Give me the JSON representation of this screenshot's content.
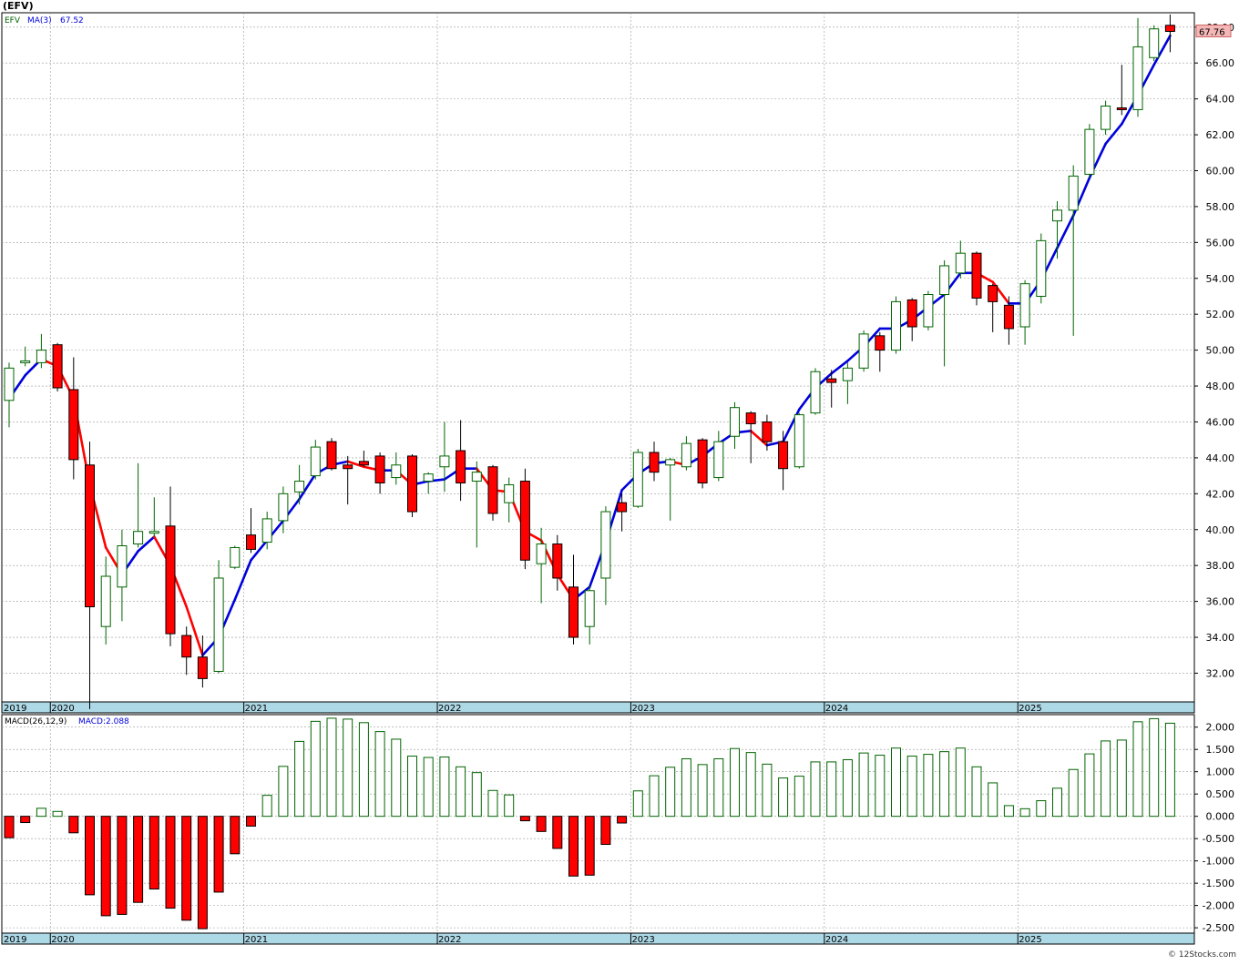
{
  "header": {
    "ticker_label": "(EFV)",
    "legend_symbol": "EFV",
    "legend_ma_label": "MA(3)",
    "legend_ma_value": "67.52",
    "last_price_tag": "67.76"
  },
  "macd_panel": {
    "label": "MACD(26,12,9)",
    "value_label": "MACD:2.088"
  },
  "footer": {
    "watermark": "© 12Stocks.com"
  },
  "colors": {
    "up_candle": "#006400",
    "down_candle": "#ff0000",
    "ma_up": "#0000dd",
    "ma_down": "#ff0000",
    "date_axis_band": "#add8e6",
    "grid": "#999999"
  },
  "chart_data": [
    {
      "type": "candlestick",
      "interval": "monthly",
      "series_name": "EFV",
      "ylim": [
        30.4,
        68.8
      ],
      "y_ticks": [
        "32.00",
        "34.00",
        "36.00",
        "38.00",
        "40.00",
        "42.00",
        "44.00",
        "46.00",
        "48.00",
        "50.00",
        "52.00",
        "54.00",
        "56.00",
        "58.00",
        "60.00",
        "62.00",
        "64.00",
        "66.00",
        "68.00"
      ],
      "x_tick_labels": [
        "2019",
        "2020",
        "2021",
        "2022",
        "2023",
        "2024",
        "2025"
      ],
      "grid": true,
      "candles": [
        {
          "o": 47.2,
          "h": 49.3,
          "l": 45.7,
          "c": 49.0
        },
        {
          "o": 49.3,
          "h": 50.2,
          "l": 49.1,
          "c": 49.4
        },
        {
          "o": 49.3,
          "h": 50.9,
          "l": 49.0,
          "c": 50.0
        },
        {
          "o": 50.3,
          "h": 50.4,
          "l": 47.7,
          "c": 47.9
        },
        {
          "o": 47.8,
          "h": 49.6,
          "l": 42.8,
          "c": 43.9
        },
        {
          "o": 43.6,
          "h": 44.9,
          "l": 30.0,
          "c": 35.7
        },
        {
          "o": 34.6,
          "h": 38.5,
          "l": 33.6,
          "c": 37.4
        },
        {
          "o": 36.8,
          "h": 40.0,
          "l": 34.9,
          "c": 39.1
        },
        {
          "o": 39.2,
          "h": 43.7,
          "l": 39.0,
          "c": 39.9
        },
        {
          "o": 39.8,
          "h": 41.8,
          "l": 39.6,
          "c": 39.9
        },
        {
          "o": 40.2,
          "h": 42.4,
          "l": 33.5,
          "c": 34.2
        },
        {
          "o": 34.1,
          "h": 34.6,
          "l": 31.9,
          "c": 32.9
        },
        {
          "o": 32.9,
          "h": 34.1,
          "l": 31.2,
          "c": 31.7
        },
        {
          "o": 32.1,
          "h": 38.3,
          "l": 32.0,
          "c": 37.3
        },
        {
          "o": 37.9,
          "h": 39.1,
          "l": 37.8,
          "c": 39.0
        },
        {
          "o": 39.7,
          "h": 41.2,
          "l": 38.7,
          "c": 38.9
        },
        {
          "o": 39.3,
          "h": 41.0,
          "l": 38.9,
          "c": 40.6
        },
        {
          "o": 40.5,
          "h": 42.4,
          "l": 39.8,
          "c": 42.0
        },
        {
          "o": 42.1,
          "h": 43.6,
          "l": 41.4,
          "c": 42.7
        },
        {
          "o": 43.0,
          "h": 45.0,
          "l": 42.8,
          "c": 44.6
        },
        {
          "o": 44.9,
          "h": 45.1,
          "l": 43.3,
          "c": 43.4
        },
        {
          "o": 43.6,
          "h": 44.1,
          "l": 41.4,
          "c": 43.4
        },
        {
          "o": 43.8,
          "h": 44.4,
          "l": 43.5,
          "c": 43.6
        },
        {
          "o": 44.1,
          "h": 44.3,
          "l": 42.0,
          "c": 42.6
        },
        {
          "o": 42.9,
          "h": 44.3,
          "l": 42.5,
          "c": 43.6
        },
        {
          "o": 44.1,
          "h": 44.2,
          "l": 40.7,
          "c": 41.0
        },
        {
          "o": 42.7,
          "h": 43.2,
          "l": 42.0,
          "c": 43.1
        },
        {
          "o": 43.5,
          "h": 46.0,
          "l": 42.1,
          "c": 44.1
        },
        {
          "o": 44.4,
          "h": 46.1,
          "l": 41.6,
          "c": 42.6
        },
        {
          "o": 42.7,
          "h": 43.8,
          "l": 39.0,
          "c": 43.2
        },
        {
          "o": 43.5,
          "h": 43.6,
          "l": 40.5,
          "c": 40.9
        },
        {
          "o": 41.5,
          "h": 42.9,
          "l": 40.4,
          "c": 42.5
        },
        {
          "o": 42.7,
          "h": 43.4,
          "l": 37.8,
          "c": 38.3
        },
        {
          "o": 38.1,
          "h": 40.1,
          "l": 35.9,
          "c": 39.2
        },
        {
          "o": 39.2,
          "h": 39.7,
          "l": 36.6,
          "c": 37.3
        },
        {
          "o": 36.8,
          "h": 38.6,
          "l": 33.6,
          "c": 34.0
        },
        {
          "o": 34.6,
          "h": 36.9,
          "l": 33.6,
          "c": 36.6
        },
        {
          "o": 37.3,
          "h": 41.3,
          "l": 35.8,
          "c": 41.0
        },
        {
          "o": 41.5,
          "h": 42.0,
          "l": 39.9,
          "c": 41.0
        },
        {
          "o": 41.3,
          "h": 44.5,
          "l": 41.2,
          "c": 44.3
        },
        {
          "o": 44.3,
          "h": 44.9,
          "l": 42.7,
          "c": 43.2
        },
        {
          "o": 43.6,
          "h": 44.0,
          "l": 40.5,
          "c": 43.9
        },
        {
          "o": 43.5,
          "h": 45.2,
          "l": 43.3,
          "c": 44.8
        },
        {
          "o": 45.0,
          "h": 45.1,
          "l": 42.3,
          "c": 42.6
        },
        {
          "o": 42.9,
          "h": 45.5,
          "l": 42.7,
          "c": 44.9
        },
        {
          "o": 45.2,
          "h": 47.1,
          "l": 44.5,
          "c": 46.8
        },
        {
          "o": 46.5,
          "h": 46.6,
          "l": 43.7,
          "c": 45.9
        },
        {
          "o": 46.0,
          "h": 46.4,
          "l": 44.4,
          "c": 44.9
        },
        {
          "o": 44.9,
          "h": 45.5,
          "l": 42.2,
          "c": 43.4
        },
        {
          "o": 43.5,
          "h": 46.5,
          "l": 43.4,
          "c": 46.4
        },
        {
          "o": 46.5,
          "h": 49.0,
          "l": 46.4,
          "c": 48.8
        },
        {
          "o": 48.4,
          "h": 48.9,
          "l": 46.8,
          "c": 48.2
        },
        {
          "o": 48.3,
          "h": 49.3,
          "l": 47.0,
          "c": 49.0
        },
        {
          "o": 49.0,
          "h": 51.1,
          "l": 48.8,
          "c": 50.9
        },
        {
          "o": 50.8,
          "h": 51.0,
          "l": 48.8,
          "c": 50.0
        },
        {
          "o": 50.0,
          "h": 53.0,
          "l": 49.8,
          "c": 52.7
        },
        {
          "o": 52.8,
          "h": 52.9,
          "l": 50.5,
          "c": 51.3
        },
        {
          "o": 51.3,
          "h": 53.3,
          "l": 51.1,
          "c": 53.1
        },
        {
          "o": 53.1,
          "h": 55.0,
          "l": 49.1,
          "c": 54.7
        },
        {
          "o": 54.3,
          "h": 56.1,
          "l": 54.0,
          "c": 55.4
        },
        {
          "o": 55.4,
          "h": 55.5,
          "l": 52.5,
          "c": 52.9
        },
        {
          "o": 53.6,
          "h": 53.7,
          "l": 51.0,
          "c": 52.7
        },
        {
          "o": 52.5,
          "h": 53.0,
          "l": 50.3,
          "c": 51.2
        },
        {
          "o": 51.3,
          "h": 53.9,
          "l": 50.3,
          "c": 53.7
        },
        {
          "o": 53.0,
          "h": 56.5,
          "l": 52.6,
          "c": 56.1
        },
        {
          "o": 57.2,
          "h": 58.3,
          "l": 55.1,
          "c": 57.8
        },
        {
          "o": 57.8,
          "h": 60.3,
          "l": 50.8,
          "c": 59.7
        },
        {
          "o": 59.8,
          "h": 62.6,
          "l": 59.6,
          "c": 62.3
        },
        {
          "o": 62.3,
          "h": 63.9,
          "l": 62.0,
          "c": 63.6
        },
        {
          "o": 63.5,
          "h": 65.9,
          "l": 63.1,
          "c": 63.4
        },
        {
          "o": 63.4,
          "h": 68.5,
          "l": 63.0,
          "c": 66.9
        },
        {
          "o": 66.3,
          "h": 68.1,
          "l": 66.1,
          "c": 67.9
        },
        {
          "o": 68.1,
          "h": 68.7,
          "l": 66.6,
          "c": 67.76
        }
      ],
      "ma3": [
        47.3,
        48.6,
        49.5,
        49.1,
        47.3,
        42.5,
        39.0,
        37.5,
        38.8,
        39.6,
        38.0,
        35.7,
        33.0,
        34.0,
        36.1,
        38.3,
        39.4,
        40.5,
        41.7,
        43.1,
        43.6,
        43.8,
        43.5,
        43.3,
        43.3,
        42.5,
        42.7,
        42.8,
        43.4,
        43.4,
        42.2,
        42.1,
        39.9,
        39.4,
        37.5,
        36.1,
        36.8,
        39.3,
        42.2,
        43.1,
        43.7,
        43.8,
        43.6,
        44.1,
        44.8,
        45.4,
        45.5,
        44.7,
        44.9,
        46.7,
        47.9,
        48.7,
        49.4,
        50.2,
        51.2,
        51.2,
        51.7,
        52.4,
        53.1,
        54.3,
        54.3,
        53.8,
        52.6,
        52.6,
        53.9,
        55.7,
        57.5,
        59.6,
        61.5,
        62.6,
        64.2,
        65.9,
        67.52
      ]
    },
    {
      "type": "bar",
      "series_name": "MACD(26,12,9)",
      "ylim": [
        -2.62,
        2.28
      ],
      "y_ticks": [
        "2.000",
        "1.500",
        "1.000",
        "0.500",
        "0.000",
        "-0.500",
        "-1.000",
        "-1.500",
        "-2.000",
        "-2.500"
      ],
      "x_tick_labels": [
        "2019",
        "2020",
        "2021",
        "2022",
        "2023",
        "2024",
        "2025"
      ],
      "grid": true,
      "values": [
        -0.48,
        -0.14,
        0.18,
        0.11,
        -0.37,
        -1.76,
        -2.23,
        -2.2,
        -1.93,
        -1.63,
        -2.06,
        -2.33,
        -2.52,
        -1.7,
        -0.84,
        -0.22,
        0.47,
        1.12,
        1.68,
        2.13,
        2.2,
        2.18,
        2.1,
        1.9,
        1.73,
        1.35,
        1.32,
        1.33,
        1.11,
        0.98,
        0.58,
        0.48,
        -0.1,
        -0.34,
        -0.72,
        -1.34,
        -1.32,
        -0.63,
        -0.15,
        0.57,
        0.91,
        1.1,
        1.29,
        1.16,
        1.29,
        1.52,
        1.43,
        1.17,
        0.86,
        0.9,
        1.22,
        1.22,
        1.27,
        1.42,
        1.37,
        1.53,
        1.35,
        1.39,
        1.45,
        1.53,
        1.11,
        0.75,
        0.24,
        0.17,
        0.35,
        0.63,
        1.05,
        1.4,
        1.69,
        1.71,
        2.12,
        2.19,
        2.088
      ]
    }
  ]
}
